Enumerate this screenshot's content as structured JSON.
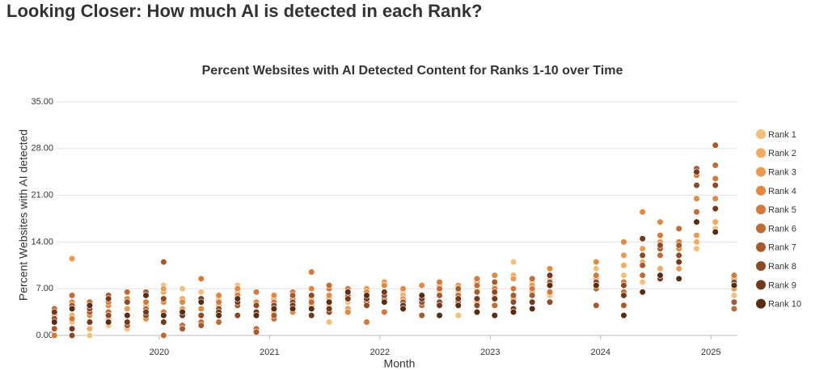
{
  "heading": "Looking Closer: How much AI is detected in each Rank?",
  "chart_data": {
    "type": "scatter",
    "title": "Percent Websites with AI Detected Content for Ranks 1-10 over Time",
    "x_label": "Month",
    "y_label": "Percent Websites with AI detected",
    "xlim": [
      2019.07,
      2025.24
    ],
    "xticks": [
      2020,
      2021,
      2022,
      2023,
      2024,
      2025
    ],
    "ylim": [
      0,
      35
    ],
    "yticks": [
      {
        "value": 0,
        "label": "0.00"
      },
      {
        "value": 7,
        "label": "7.00"
      },
      {
        "value": 14,
        "label": "14.00"
      },
      {
        "value": 21,
        "label": "21.00"
      },
      {
        "value": 28,
        "label": "28.00"
      },
      {
        "value": 35,
        "label": "35.00"
      }
    ],
    "grid": true,
    "legend": "right",
    "x": [
      2019.05,
      2019.21,
      2019.37,
      2019.54,
      2019.71,
      2019.88,
      2020.04,
      2020.21,
      2020.38,
      2020.54,
      2020.71,
      2020.88,
      2021.04,
      2021.21,
      2021.38,
      2021.54,
      2021.71,
      2021.88,
      2022.04,
      2022.21,
      2022.38,
      2022.54,
      2022.71,
      2022.88,
      2023.04,
      2023.21,
      2023.38,
      2023.54,
      2023.96,
      2024.21,
      2024.38,
      2024.54,
      2024.71,
      2024.87,
      2025.04,
      2025.21
    ],
    "series": [
      {
        "name": "Rank 1",
        "color": "#f2c078",
        "values": [
          1,
          2,
          0,
          1.5,
          1,
          4,
          7.5,
          7,
          6.5,
          5.5,
          7.5,
          4.5,
          4,
          6.5,
          6,
          2,
          5,
          5.5,
          5,
          6.5,
          3,
          6.5,
          3,
          7,
          7.5,
          11,
          7.5,
          6,
          10,
          9,
          8,
          9,
          10,
          13,
          16,
          6
        ]
      },
      {
        "name": "Rank 2",
        "color": "#f0aa62",
        "values": [
          2,
          3,
          1,
          2.5,
          2,
          4.5,
          6.5,
          5.5,
          5,
          4,
          6,
          5,
          3.5,
          5.5,
          5.5,
          4.5,
          6,
          6.5,
          6,
          6,
          5,
          7,
          6.5,
          6.5,
          6,
          9,
          8,
          8.5,
          9,
          10.5,
          11,
          10,
          12,
          14,
          17,
          5
        ]
      },
      {
        "name": "Rank 3",
        "color": "#ec9a52",
        "values": [
          3,
          11.5,
          2,
          3,
          4,
          5,
          7,
          4,
          3,
          4.5,
          6.5,
          3,
          5.5,
          4,
          4.5,
          5.5,
          4,
          7,
          8,
          5.5,
          4.5,
          7.5,
          7.5,
          5,
          5.5,
          8.5,
          7.5,
          9,
          8.5,
          12,
          13,
          14,
          10,
          15,
          19,
          7
        ]
      },
      {
        "name": "Rank 4",
        "color": "#e4883e",
        "values": [
          4,
          5,
          3,
          4.5,
          5.5,
          2.5,
          5,
          5,
          4,
          6,
          7,
          5,
          6,
          3.5,
          7,
          6,
          3.5,
          6.5,
          7.5,
          7,
          7.5,
          5,
          4.5,
          8,
          9,
          5.5,
          6.5,
          10,
          11,
          14,
          18.5,
          17,
          13,
          20.5,
          20.5,
          8.5
        ]
      },
      {
        "name": "Rank 5",
        "color": "#d87838",
        "values": [
          0,
          2.5,
          4.5,
          5,
          3,
          5,
          3.5,
          3,
          8.5,
          5,
          6,
          6.5,
          5,
          6.5,
          9.5,
          7,
          7,
          2,
          3.5,
          5,
          6,
          8,
          6,
          8.5,
          7,
          7,
          7,
          6.5,
          9,
          8,
          12,
          15,
          14,
          24,
          23.5,
          9
        ]
      },
      {
        "name": "Rank 6",
        "color": "#c46a34",
        "values": [
          4,
          6,
          5,
          3.5,
          6.5,
          4,
          0,
          1.5,
          2,
          2,
          3,
          1,
          2.5,
          5.5,
          5,
          7.5,
          6,
          4.5,
          5,
          4,
          4.5,
          7,
          6,
          7.5,
          4.5,
          4,
          8.5,
          7.5,
          7,
          6.5,
          9,
          12,
          16,
          18.5,
          25.5,
          4
        ]
      },
      {
        "name": "Rank 7",
        "color": "#a85a2c",
        "values": [
          1,
          4.5,
          3.5,
          6,
          1.5,
          6.5,
          11,
          1,
          1.5,
          4,
          4.5,
          0.5,
          3,
          6,
          4,
          4,
          5.5,
          5,
          5.5,
          5,
          3,
          6,
          7,
          6.5,
          8,
          6,
          6,
          8,
          4.5,
          4.5,
          10.5,
          13,
          13.5,
          25,
          28.5,
          5
        ]
      },
      {
        "name": "Rank 8",
        "color": "#8e4a24",
        "values": [
          2.5,
          0,
          4,
          3,
          5,
          3,
          5.5,
          3,
          3,
          4,
          3,
          4.5,
          4.5,
          5,
          6,
          3.5,
          6,
          4.5,
          6,
          4,
          5,
          5,
          5,
          4.5,
          6.5,
          5,
          4,
          5,
          8,
          7.5,
          12,
          13.5,
          12,
          22.5,
          22.5,
          8
        ]
      },
      {
        "name": "Rank 9",
        "color": "#74381a",
        "values": [
          3.5,
          1,
          2,
          5.5,
          2,
          3.5,
          2,
          3,
          5.5,
          3.5,
          5,
          3.5,
          4,
          4.5,
          3,
          4,
          5.5,
          5.5,
          6.5,
          4.5,
          5.5,
          4.5,
          5.5,
          5.5,
          5.5,
          4,
          5,
          9,
          7.5,
          6,
          14.5,
          8.5,
          11,
          24.5,
          19,
          7.5
        ]
      },
      {
        "name": "Rank 10",
        "color": "#5a2c12",
        "values": [
          2,
          4,
          4.5,
          2,
          3,
          6,
          3,
          3.5,
          5,
          3,
          5.5,
          3,
          4,
          4,
          4,
          5,
          6.5,
          6,
          5,
          4,
          6,
          3,
          4.5,
          3.5,
          3,
          3.5,
          4,
          7.5,
          7.5,
          3,
          6.5,
          9,
          8.5,
          17,
          15.5,
          7.5
        ]
      }
    ]
  }
}
